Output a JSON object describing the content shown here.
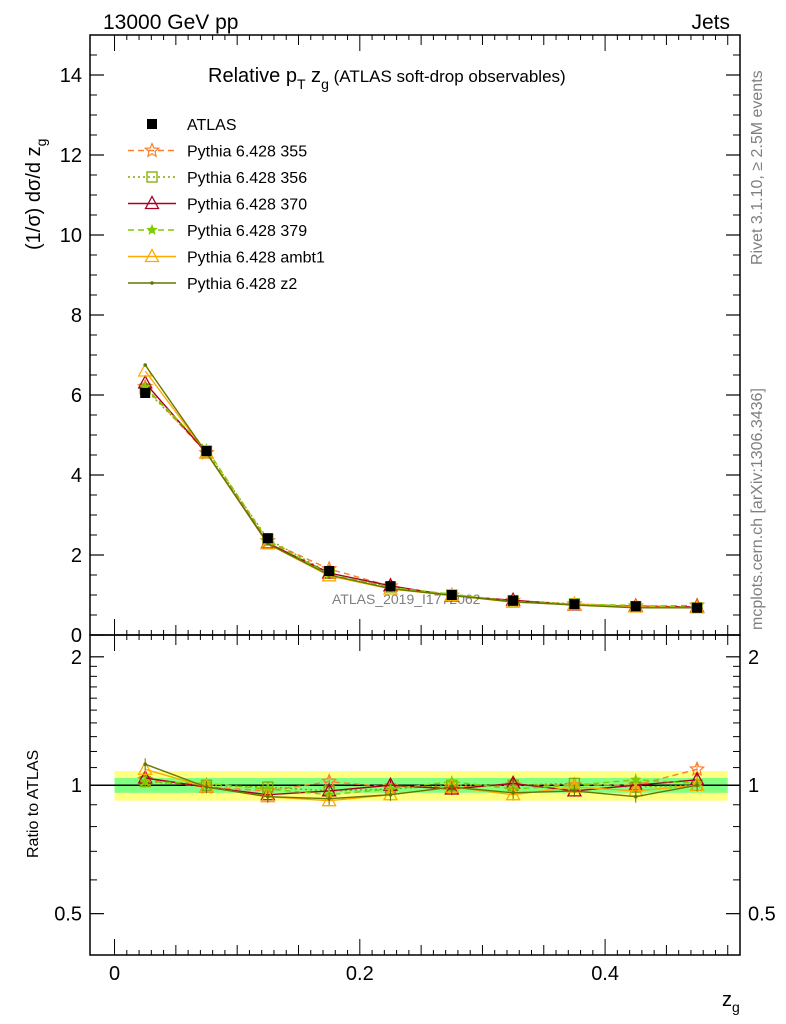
{
  "header": {
    "left": "13000 GeV pp",
    "right": "Jets"
  },
  "side_right_top": "Rivet 3.1.10, ≥ 2.5M events",
  "side_right_bottom": "mcplots.cern.ch [arXiv:1306.3436]",
  "watermark": "ATLAS_2019_I1772062",
  "title": {
    "main": "Relative p",
    "sub1": "T",
    "mid": " z",
    "sub2": "g",
    "tail": " (ATLAS soft-drop observables)"
  },
  "ylabel_top": {
    "main": "(1/σ) dσ/d z",
    "sub": "g"
  },
  "ylabel_bottom": "Ratio to ATLAS",
  "xlabel": {
    "main": "z",
    "sub": "g"
  },
  "colors": {
    "atlas": "#000000",
    "p355": "#ff7f2a",
    "p356": "#7faa00",
    "p370": "#aa0022",
    "p379": "#7fcc00",
    "ambt1": "#ffaa00",
    "z2": "#667700",
    "band_outer": "#ffff80",
    "band_inner": "#80ff80"
  },
  "chart_data": [
    {
      "type": "line",
      "panel": "main",
      "xlim": [
        -0.02,
        0.51
      ],
      "ylim": [
        0,
        15
      ],
      "yticks": [
        0,
        2,
        4,
        6,
        8,
        10,
        12,
        14
      ],
      "x": [
        0.025,
        0.075,
        0.125,
        0.175,
        0.225,
        0.275,
        0.325,
        0.375,
        0.425,
        0.475
      ],
      "series": [
        {
          "name": "ATLAS",
          "values": [
            6.05,
            4.6,
            2.42,
            1.6,
            1.22,
            1.0,
            0.86,
            0.77,
            0.72,
            0.68
          ]
        },
        {
          "name": "Pythia 6.428 355",
          "values": [
            6.2,
            4.55,
            2.35,
            1.65,
            1.22,
            0.99,
            0.86,
            0.77,
            0.72,
            0.74
          ]
        },
        {
          "name": "Pythia 6.428 356",
          "values": [
            6.15,
            4.6,
            2.4,
            1.55,
            1.2,
            1.0,
            0.86,
            0.78,
            0.71,
            0.68
          ]
        },
        {
          "name": "Pythia 6.428 370",
          "values": [
            6.3,
            4.55,
            2.3,
            1.55,
            1.23,
            0.98,
            0.87,
            0.75,
            0.72,
            0.7
          ]
        },
        {
          "name": "Pythia 6.428 379",
          "values": [
            6.2,
            4.65,
            2.36,
            1.52,
            1.19,
            1.02,
            0.84,
            0.77,
            0.74,
            0.69
          ]
        },
        {
          "name": "Pythia 6.428 ambt1",
          "values": [
            6.6,
            4.55,
            2.28,
            1.48,
            1.15,
            0.99,
            0.82,
            0.76,
            0.7,
            0.68
          ]
        },
        {
          "name": "Pythia 6.428 z2",
          "values": [
            6.75,
            4.55,
            2.28,
            1.5,
            1.16,
            0.99,
            0.83,
            0.75,
            0.68,
            0.68
          ]
        }
      ]
    },
    {
      "type": "line",
      "panel": "ratio",
      "ylabel": "Ratio to ATLAS",
      "xlabel": "z_g",
      "xlim": [
        -0.02,
        0.51
      ],
      "ylim": [
        0.4,
        2.25
      ],
      "yticks": [
        0.5,
        1,
        2
      ],
      "xticks": [
        0,
        0.2,
        0.4
      ],
      "x": [
        0.025,
        0.075,
        0.125,
        0.175,
        0.225,
        0.275,
        0.325,
        0.375,
        0.425,
        0.475
      ],
      "band_inner_halfwidth": 0.04,
      "band_outer_halfwidth": 0.08,
      "series": [
        {
          "name": "Pythia 6.428 355",
          "values": [
            1.03,
            0.99,
            0.97,
            1.02,
            0.99,
            0.99,
            1.0,
            1.0,
            1.0,
            1.09
          ]
        },
        {
          "name": "Pythia 6.428 356",
          "values": [
            1.02,
            1.0,
            0.99,
            0.97,
            0.98,
            1.0,
            1.0,
            1.01,
            0.99,
            1.0
          ]
        },
        {
          "name": "Pythia 6.428 370",
          "values": [
            1.04,
            0.99,
            0.95,
            0.97,
            1.0,
            0.98,
            1.01,
            0.97,
            1.0,
            1.03
          ]
        },
        {
          "name": "Pythia 6.428 379",
          "values": [
            1.02,
            1.01,
            0.98,
            0.95,
            0.98,
            1.02,
            0.98,
            1.0,
            1.03,
            1.01
          ]
        },
        {
          "name": "Pythia 6.428 ambt1",
          "values": [
            1.09,
            0.99,
            0.94,
            0.92,
            0.95,
            0.99,
            0.95,
            0.99,
            0.97,
            1.0
          ]
        },
        {
          "name": "Pythia 6.428 z2",
          "values": [
            1.12,
            0.99,
            0.94,
            0.93,
            0.95,
            0.99,
            0.96,
            0.97,
            0.94,
            1.0
          ]
        }
      ]
    }
  ]
}
